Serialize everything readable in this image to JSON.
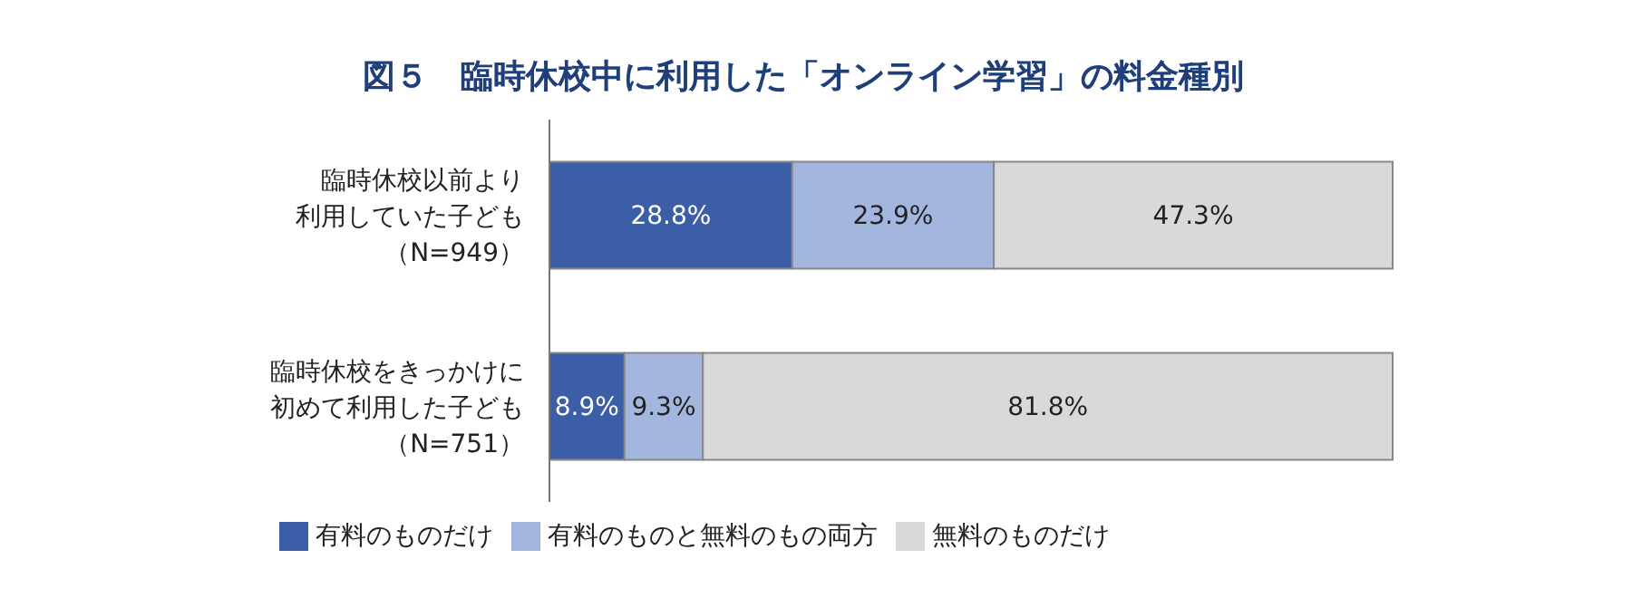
{
  "chart_data": {
    "type": "bar",
    "title": "図５　臨時休校中に利用した「オンライン学習」の料金種別",
    "orientation": "horizontal",
    "stacked": true,
    "categories": [
      "臨時休校以前より利用していた子ども（N=949）",
      "臨時休校をきっかけに初めて利用した子ども（N=751）"
    ],
    "series": [
      {
        "name": "有料のものだけ",
        "color": "#3b5ea6",
        "values": [
          28.8,
          8.9
        ],
        "value_labels": [
          "28.8%",
          "8.9%"
        ]
      },
      {
        "name": "有料のものと無料のもの両方",
        "color": "#a3b6de",
        "values": [
          23.9,
          9.3
        ],
        "value_labels": [
          "23.9%",
          "9.3%"
        ]
      },
      {
        "name": "無料のものだけ",
        "color": "#d9d9d9",
        "values": [
          47.3,
          81.8
        ],
        "value_labels": [
          "47.3%",
          "81.8%"
        ]
      }
    ],
    "legend": "bottom"
  }
}
